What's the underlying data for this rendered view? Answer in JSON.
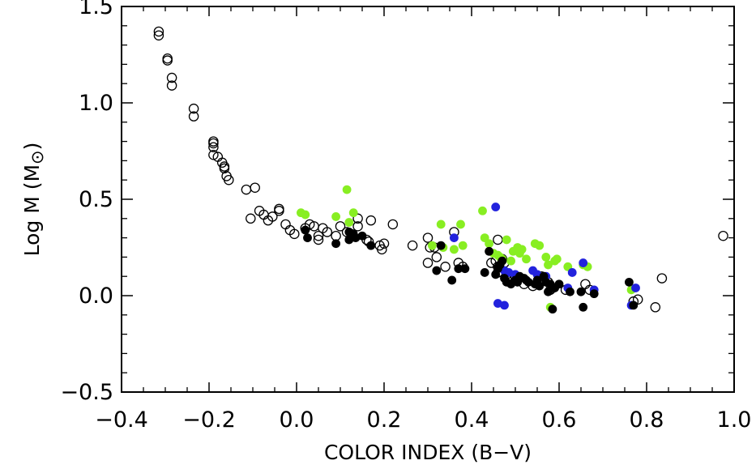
{
  "chart_data": {
    "type": "scatter",
    "xlabel": "COLOR INDEX (B−V)",
    "ylabel_text": "Log M (M",
    "ylabel_symbol": "⊙",
    "ylabel_close": ")",
    "xlim": [
      -0.4,
      1.0
    ],
    "ylim": [
      -0.5,
      1.5
    ],
    "x_ticks": [
      {
        "value": -0.4,
        "label": "−0.4"
      },
      {
        "value": -0.2,
        "label": "−0.2"
      },
      {
        "value": 0.0,
        "label": "0.0"
      },
      {
        "value": 0.2,
        "label": "0.2"
      },
      {
        "value": 0.4,
        "label": "0.4"
      },
      {
        "value": 0.6,
        "label": "0.6"
      },
      {
        "value": 0.8,
        "label": "0.8"
      },
      {
        "value": 1.0,
        "label": "1.0"
      }
    ],
    "y_ticks": [
      {
        "value": -0.5,
        "label": "−0.5"
      },
      {
        "value": 0.0,
        "label": "0.0"
      },
      {
        "value": 0.5,
        "label": "0.5"
      },
      {
        "value": 1.0,
        "label": "1.0"
      },
      {
        "value": 1.5,
        "label": "1.5"
      }
    ],
    "grid": false,
    "legend": "none",
    "series": [
      {
        "marker": "open-circle",
        "color": "#000000",
        "points": [
          [
            -0.315,
            1.37
          ],
          [
            -0.315,
            1.35
          ],
          [
            -0.295,
            1.23
          ],
          [
            -0.295,
            1.22
          ],
          [
            -0.285,
            1.13
          ],
          [
            -0.285,
            1.09
          ],
          [
            -0.235,
            0.97
          ],
          [
            -0.235,
            0.93
          ],
          [
            -0.19,
            0.8
          ],
          [
            -0.19,
            0.79
          ],
          [
            -0.19,
            0.77
          ],
          [
            -0.19,
            0.73
          ],
          [
            -0.18,
            0.72
          ],
          [
            -0.17,
            0.69
          ],
          [
            -0.165,
            0.67
          ],
          [
            -0.165,
            0.66
          ],
          [
            -0.16,
            0.62
          ],
          [
            -0.155,
            0.6
          ],
          [
            -0.115,
            0.55
          ],
          [
            -0.095,
            0.56
          ],
          [
            -0.105,
            0.4
          ],
          [
            -0.085,
            0.44
          ],
          [
            -0.075,
            0.42
          ],
          [
            -0.065,
            0.39
          ],
          [
            -0.055,
            0.41
          ],
          [
            -0.04,
            0.45
          ],
          [
            -0.04,
            0.44
          ],
          [
            -0.025,
            0.37
          ],
          [
            -0.015,
            0.34
          ],
          [
            -0.005,
            0.32
          ],
          [
            0.02,
            0.35
          ],
          [
            0.03,
            0.37
          ],
          [
            0.04,
            0.36
          ],
          [
            0.05,
            0.31
          ],
          [
            0.05,
            0.29
          ],
          [
            0.06,
            0.35
          ],
          [
            0.07,
            0.33
          ],
          [
            0.09,
            0.31
          ],
          [
            0.1,
            0.36
          ],
          [
            0.115,
            0.33
          ],
          [
            0.125,
            0.32
          ],
          [
            0.14,
            0.4
          ],
          [
            0.14,
            0.36
          ],
          [
            0.16,
            0.29
          ],
          [
            0.165,
            0.28
          ],
          [
            0.17,
            0.39
          ],
          [
            0.19,
            0.26
          ],
          [
            0.195,
            0.24
          ],
          [
            0.2,
            0.27
          ],
          [
            0.22,
            0.37
          ],
          [
            0.265,
            0.26
          ],
          [
            0.3,
            0.3
          ],
          [
            0.305,
            0.25
          ],
          [
            0.3,
            0.17
          ],
          [
            0.315,
            0.25
          ],
          [
            0.32,
            0.2
          ],
          [
            0.34,
            0.15
          ],
          [
            0.36,
            0.33
          ],
          [
            0.37,
            0.17
          ],
          [
            0.38,
            0.15
          ],
          [
            0.445,
            0.17
          ],
          [
            0.455,
            0.18
          ],
          [
            0.46,
            0.15
          ],
          [
            0.46,
            0.12
          ],
          [
            0.46,
            0.29
          ],
          [
            0.47,
            0.19
          ],
          [
            0.475,
            0.17
          ],
          [
            0.48,
            0.11
          ],
          [
            0.48,
            0.09
          ],
          [
            0.52,
            0.06
          ],
          [
            0.54,
            0.05
          ],
          [
            0.56,
            0.1
          ],
          [
            0.575,
            0.07
          ],
          [
            0.585,
            0.04
          ],
          [
            0.58,
            0.03
          ],
          [
            0.615,
            0.03
          ],
          [
            0.66,
            0.06
          ],
          [
            0.67,
            0.03
          ],
          [
            0.77,
            -0.03
          ],
          [
            0.78,
            -0.02
          ],
          [
            0.82,
            -0.06
          ],
          [
            0.835,
            0.09
          ],
          [
            0.975,
            0.31
          ]
        ]
      },
      {
        "marker": "filled-circle",
        "color": "#88ee22",
        "points": [
          [
            0.01,
            0.43
          ],
          [
            0.02,
            0.42
          ],
          [
            0.09,
            0.41
          ],
          [
            0.115,
            0.55
          ],
          [
            0.12,
            0.38
          ],
          [
            0.13,
            0.43
          ],
          [
            0.31,
            0.26
          ],
          [
            0.33,
            0.37
          ],
          [
            0.335,
            0.25
          ],
          [
            0.36,
            0.24
          ],
          [
            0.375,
            0.37
          ],
          [
            0.38,
            0.26
          ],
          [
            0.425,
            0.44
          ],
          [
            0.43,
            0.3
          ],
          [
            0.44,
            0.27
          ],
          [
            0.45,
            0.22
          ],
          [
            0.46,
            0.21
          ],
          [
            0.465,
            0.2
          ],
          [
            0.47,
            0.19
          ],
          [
            0.48,
            0.29
          ],
          [
            0.49,
            0.18
          ],
          [
            0.495,
            0.23
          ],
          [
            0.505,
            0.25
          ],
          [
            0.51,
            0.22
          ],
          [
            0.515,
            0.24
          ],
          [
            0.525,
            0.19
          ],
          [
            0.545,
            0.27
          ],
          [
            0.555,
            0.26
          ],
          [
            0.57,
            0.2
          ],
          [
            0.575,
            0.16
          ],
          [
            0.59,
            0.18
          ],
          [
            0.595,
            0.19
          ],
          [
            0.62,
            0.15
          ],
          [
            0.655,
            0.16
          ],
          [
            0.665,
            0.15
          ],
          [
            0.58,
            -0.06
          ],
          [
            0.765,
            0.03
          ]
        ]
      },
      {
        "marker": "filled-circle",
        "color": "#2222dd",
        "points": [
          [
            0.36,
            0.3
          ],
          [
            0.455,
            0.46
          ],
          [
            0.46,
            -0.04
          ],
          [
            0.475,
            -0.05
          ],
          [
            0.475,
            0.13
          ],
          [
            0.485,
            0.12
          ],
          [
            0.5,
            0.11
          ],
          [
            0.54,
            0.13
          ],
          [
            0.55,
            0.11
          ],
          [
            0.57,
            0.1
          ],
          [
            0.62,
            0.04
          ],
          [
            0.63,
            0.12
          ],
          [
            0.655,
            0.17
          ],
          [
            0.68,
            0.03
          ],
          [
            0.765,
            -0.05
          ],
          [
            0.775,
            0.04
          ]
        ]
      },
      {
        "marker": "filled-circle",
        "color": "#000000",
        "points": [
          [
            0.02,
            0.34
          ],
          [
            0.025,
            0.3
          ],
          [
            0.09,
            0.27
          ],
          [
            0.12,
            0.33
          ],
          [
            0.12,
            0.29
          ],
          [
            0.13,
            0.32
          ],
          [
            0.135,
            0.3
          ],
          [
            0.15,
            0.31
          ],
          [
            0.17,
            0.26
          ],
          [
            0.32,
            0.13
          ],
          [
            0.33,
            0.26
          ],
          [
            0.355,
            0.08
          ],
          [
            0.37,
            0.14
          ],
          [
            0.385,
            0.14
          ],
          [
            0.43,
            0.12
          ],
          [
            0.44,
            0.23
          ],
          [
            0.455,
            0.11
          ],
          [
            0.46,
            0.14
          ],
          [
            0.465,
            0.16
          ],
          [
            0.47,
            0.18
          ],
          [
            0.475,
            0.09
          ],
          [
            0.48,
            0.07
          ],
          [
            0.49,
            0.06
          ],
          [
            0.5,
            0.08
          ],
          [
            0.505,
            0.07
          ],
          [
            0.51,
            0.1
          ],
          [
            0.52,
            0.09
          ],
          [
            0.525,
            0.08
          ],
          [
            0.53,
            0.07
          ],
          [
            0.545,
            0.06
          ],
          [
            0.55,
            0.08
          ],
          [
            0.555,
            0.05
          ],
          [
            0.565,
            0.1
          ],
          [
            0.57,
            0.07
          ],
          [
            0.575,
            0.02
          ],
          [
            0.58,
            0.06
          ],
          [
            0.585,
            -0.07
          ],
          [
            0.59,
            0.04
          ],
          [
            0.6,
            0.06
          ],
          [
            0.625,
            0.02
          ],
          [
            0.65,
            0.02
          ],
          [
            0.655,
            -0.06
          ],
          [
            0.68,
            0.01
          ],
          [
            0.76,
            0.07
          ],
          [
            0.77,
            -0.05
          ]
        ]
      }
    ]
  }
}
